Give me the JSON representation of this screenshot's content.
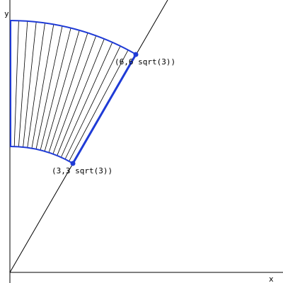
{
  "axes": {
    "x_label": "x",
    "y_label": "y"
  },
  "points": {
    "upper": {
      "x": 6,
      "y_label": "(6,6 sqrt(3))"
    },
    "lower": {
      "x": 3,
      "y_label": "(3,3 sqrt(3))"
    }
  },
  "colors": {
    "background": "#ffffff",
    "axis": "#000000",
    "region_boundary": "#1f3bd6",
    "hatch": "#000000"
  }
}
